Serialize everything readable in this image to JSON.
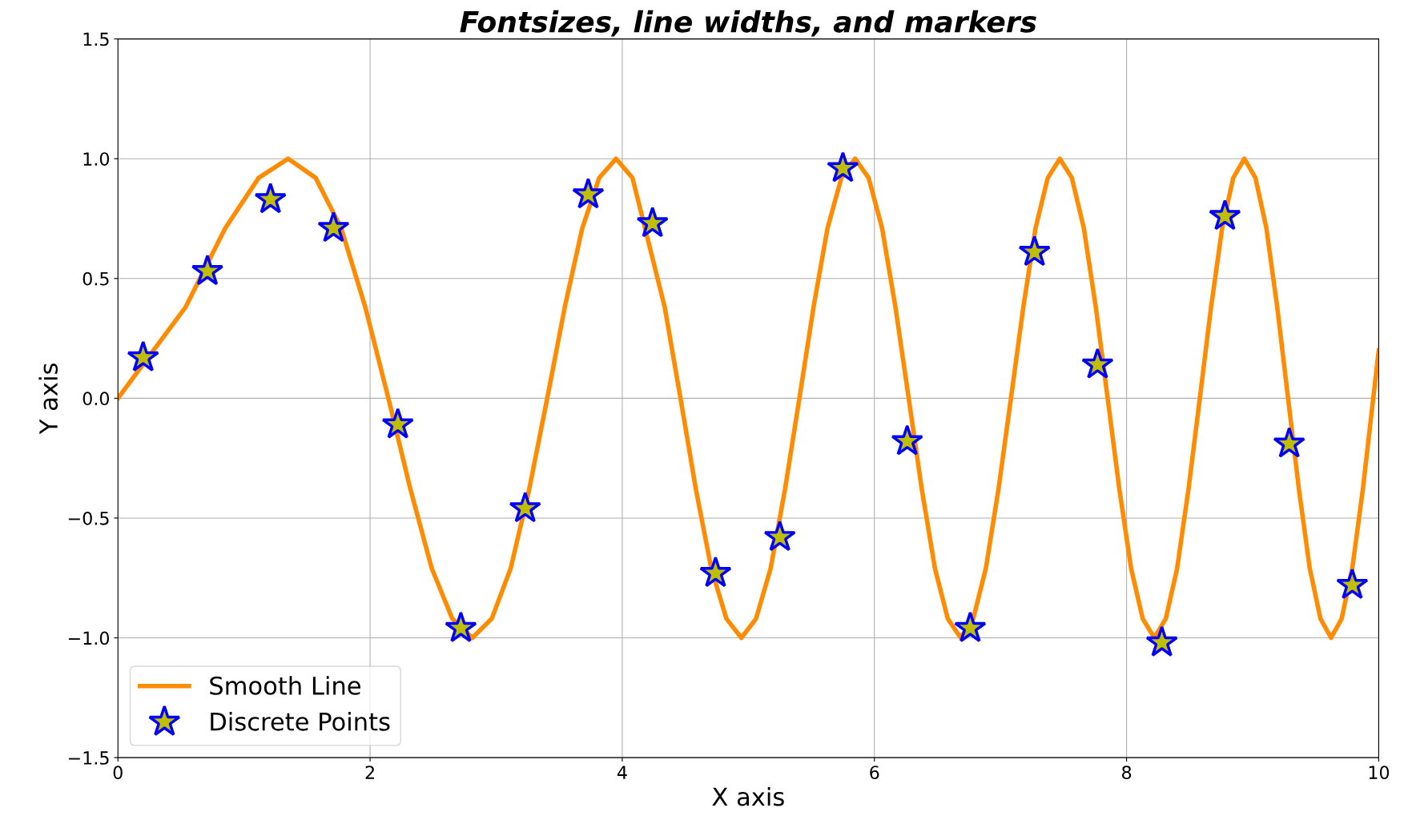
{
  "chart_data": {
    "type": "line",
    "title": "Fontsizes, line widths, and markers",
    "xlabel": "X axis",
    "ylabel": "Y axis",
    "xlim": [
      0,
      10
    ],
    "ylim": [
      -1.5,
      1.5
    ],
    "xticks": [
      0,
      2,
      4,
      6,
      8,
      10
    ],
    "yticks": [
      {
        "value": -1.5,
        "label": "−1.5"
      },
      {
        "value": -1,
        "label": "−1.0"
      },
      {
        "value": -0.5,
        "label": "−0.5"
      },
      {
        "value": 0,
        "label": "0.0"
      },
      {
        "value": 0.5,
        "label": "0.5"
      },
      {
        "value": 1,
        "label": "1.0"
      },
      {
        "value": 1.5,
        "label": "1.5"
      }
    ],
    "grid": true,
    "legend": "bottom left",
    "series": [
      {
        "name": "Smooth Line",
        "color": "#ff8c00",
        "marker": "none",
        "line_style": "solid",
        "x": [
          0,
          0.536,
          0.851,
          1.116,
          1.351,
          1.568,
          1.771,
          1.962,
          2.145,
          2.32,
          2.489,
          2.652,
          2.811,
          2.965,
          3.115,
          3.262,
          3.405,
          3.544,
          3.683,
          3.817,
          3.951,
          4.081,
          4.337,
          4.462,
          4.584,
          4.706,
          4.826,
          4.945,
          5.061,
          5.177,
          5.291,
          5.405,
          5.517,
          5.628,
          5.738,
          5.847,
          5.954,
          6.061,
          6.167,
          6.272,
          6.376,
          6.48,
          6.582,
          6.684,
          6.784,
          6.884,
          6.984,
          7.083,
          7.181,
          7.278,
          7.375,
          7.471,
          7.566,
          7.661,
          7.756,
          7.85,
          7.943,
          8.036,
          8.128,
          8.22,
          8.311,
          8.401,
          8.491,
          8.581,
          8.67,
          8.758,
          8.846,
          8.934,
          9.022,
          9.109,
          9.195,
          9.281,
          9.367,
          9.453,
          9.538,
          9.622,
          9.706,
          9.79,
          9.874,
          10
        ],
        "values": [
          0,
          0.38,
          0.71,
          0.92,
          1,
          0.92,
          0.71,
          0.38,
          0,
          -0.38,
          -0.71,
          -0.92,
          -1,
          -0.92,
          -0.71,
          -0.38,
          0,
          0.38,
          0.71,
          0.92,
          1,
          0.92,
          0.38,
          0,
          -0.38,
          -0.71,
          -0.92,
          -1,
          -0.92,
          -0.71,
          -0.38,
          0,
          0.38,
          0.71,
          0.92,
          1,
          0.92,
          0.71,
          0.38,
          0,
          -0.38,
          -0.71,
          -0.92,
          -1,
          -0.92,
          -0.71,
          -0.38,
          0,
          0.38,
          0.71,
          0.92,
          1,
          0.92,
          0.71,
          0.38,
          0,
          -0.38,
          -0.71,
          -0.92,
          -1,
          -0.92,
          -0.71,
          -0.38,
          0,
          0.38,
          0.71,
          0.92,
          1,
          0.92,
          0.71,
          0.38,
          0,
          -0.38,
          -0.71,
          -0.92,
          -1,
          -0.92,
          -0.71,
          -0.38,
          0.2
        ]
      },
      {
        "name": "Discrete Points",
        "type": "scatter",
        "color": "#bfbf00",
        "marker": "star",
        "x": [
          0.2,
          0.71,
          1.21,
          1.71,
          2.22,
          2.72,
          3.23,
          3.73,
          4.24,
          4.74,
          5.25,
          5.75,
          6.26,
          6.76,
          7.27,
          7.77,
          8.28,
          8.78,
          9.29,
          9.79
        ],
        "values": [
          0.17,
          0.53,
          0.83,
          0.71,
          -0.11,
          -0.96,
          -0.46,
          0.85,
          0.73,
          -0.73,
          -0.58,
          0.96,
          -0.18,
          -0.96,
          0.61,
          0.14,
          -1.02,
          0.76,
          -0.19,
          -0.78
        ]
      }
    ]
  }
}
